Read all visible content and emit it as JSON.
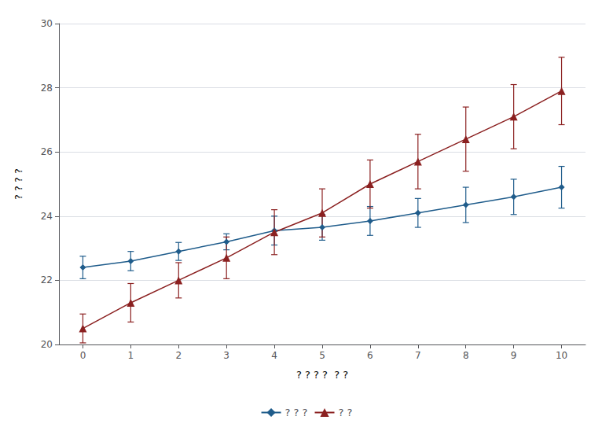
{
  "chart_data": {
    "type": "line",
    "xlabel": "? ? ? ?  ? ?",
    "ylabel": "? ? ? ?",
    "x": [
      0,
      1,
      2,
      3,
      4,
      5,
      6,
      7,
      8,
      9,
      10
    ],
    "series": [
      {
        "name": "? ? ?",
        "color": "#1f5c8b",
        "marker": "diamond",
        "line_style": "solid",
        "values": [
          22.4,
          22.6,
          22.9,
          23.2,
          23.55,
          23.65,
          23.85,
          24.1,
          24.35,
          24.6,
          24.9
        ],
        "err_lo": [
          0.35,
          0.3,
          0.28,
          0.25,
          0.45,
          0.4,
          0.45,
          0.45,
          0.55,
          0.55,
          0.65
        ],
        "err_hi": [
          0.35,
          0.3,
          0.28,
          0.25,
          0.45,
          0.4,
          0.45,
          0.45,
          0.55,
          0.55,
          0.65
        ]
      },
      {
        "name": "? ?",
        "color": "#8b2020",
        "marker": "triangle",
        "line_style": "solid",
        "values": [
          20.5,
          21.3,
          22.0,
          22.7,
          23.5,
          24.1,
          25.0,
          25.7,
          26.4,
          27.1,
          27.9
        ],
        "err_lo": [
          0.45,
          0.6,
          0.55,
          0.65,
          0.7,
          0.75,
          0.75,
          0.85,
          1.0,
          1.0,
          1.05
        ],
        "err_hi": [
          0.45,
          0.6,
          0.55,
          0.65,
          0.7,
          0.75,
          0.75,
          0.85,
          1.0,
          1.0,
          1.05
        ]
      }
    ],
    "xlim": [
      -0.5,
      10.5
    ],
    "xticks": [
      0,
      1,
      2,
      3,
      4,
      5,
      6,
      7,
      8,
      9,
      10
    ],
    "ylim": [
      20,
      30
    ],
    "yticks": [
      20,
      22,
      24,
      26,
      28,
      30
    ],
    "grid": true,
    "legend": "bottom"
  }
}
